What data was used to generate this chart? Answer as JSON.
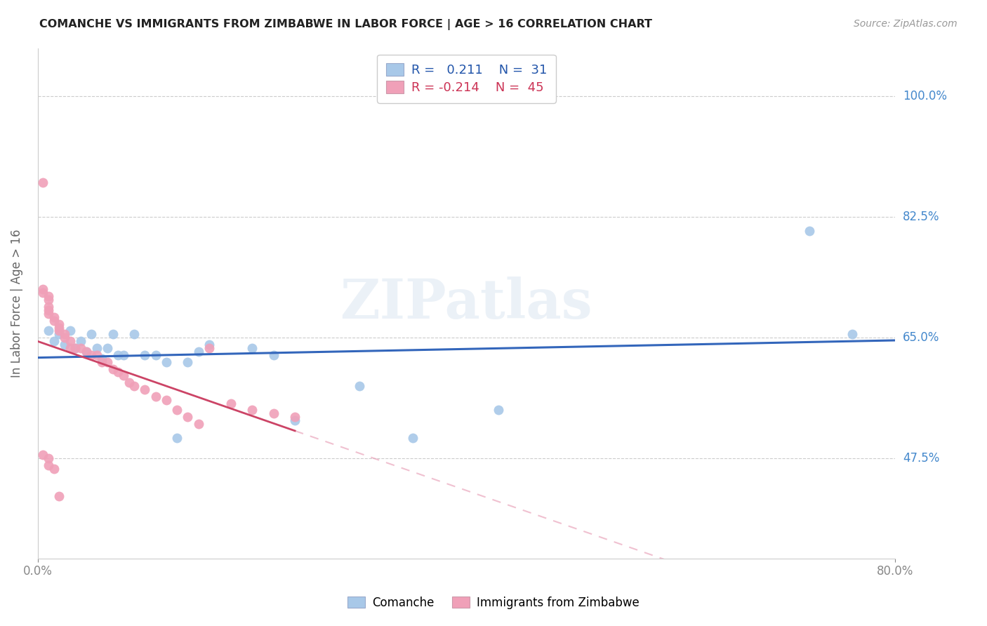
{
  "title": "COMANCHE VS IMMIGRANTS FROM ZIMBABWE IN LABOR FORCE | AGE > 16 CORRELATION CHART",
  "source": "Source: ZipAtlas.com",
  "ylabel_label": "In Labor Force | Age > 16",
  "legend_label1": "Comanche",
  "legend_label2": "Immigrants from Zimbabwe",
  "R1": "0.211",
  "N1": "31",
  "R2": "-0.214",
  "N2": "45",
  "xlim": [
    0.0,
    0.8
  ],
  "ylim": [
    0.33,
    1.07
  ],
  "yticks": [
    0.475,
    0.65,
    0.825,
    1.0
  ],
  "ytick_labels": [
    "47.5%",
    "65.0%",
    "82.5%",
    "100.0%"
  ],
  "xticks": [
    0.0,
    0.8
  ],
  "xtick_labels": [
    "0.0%",
    "80.0%"
  ],
  "blue_color": "#a8c8e8",
  "pink_color": "#f0a0b8",
  "blue_line_color": "#3366bb",
  "pink_line_color": "#cc4466",
  "pink_dash_color": "#e8a0b8",
  "watermark": "ZIPatlas",
  "comanche_x": [
    0.01,
    0.015,
    0.02,
    0.025,
    0.03,
    0.035,
    0.04,
    0.045,
    0.05,
    0.055,
    0.06,
    0.065,
    0.07,
    0.075,
    0.08,
    0.09,
    0.1,
    0.11,
    0.12,
    0.13,
    0.14,
    0.15,
    0.16,
    0.2,
    0.22,
    0.24,
    0.3,
    0.35,
    0.43,
    0.72,
    0.76
  ],
  "comanche_y": [
    0.66,
    0.645,
    0.655,
    0.64,
    0.66,
    0.635,
    0.645,
    0.63,
    0.655,
    0.635,
    0.62,
    0.635,
    0.655,
    0.625,
    0.625,
    0.655,
    0.625,
    0.625,
    0.615,
    0.505,
    0.615,
    0.63,
    0.64,
    0.635,
    0.625,
    0.53,
    0.58,
    0.505,
    0.545,
    0.805,
    0.655
  ],
  "zimb_x": [
    0.005,
    0.005,
    0.005,
    0.01,
    0.01,
    0.01,
    0.01,
    0.01,
    0.015,
    0.015,
    0.02,
    0.02,
    0.02,
    0.025,
    0.025,
    0.03,
    0.03,
    0.035,
    0.04,
    0.045,
    0.05,
    0.055,
    0.06,
    0.065,
    0.07,
    0.075,
    0.08,
    0.085,
    0.09,
    0.1,
    0.11,
    0.12,
    0.13,
    0.14,
    0.15,
    0.16,
    0.18,
    0.2,
    0.22,
    0.24,
    0.005,
    0.01,
    0.01,
    0.015,
    0.02
  ],
  "zimb_y": [
    0.875,
    0.72,
    0.715,
    0.71,
    0.705,
    0.695,
    0.69,
    0.685,
    0.68,
    0.675,
    0.67,
    0.665,
    0.66,
    0.655,
    0.65,
    0.645,
    0.635,
    0.635,
    0.635,
    0.63,
    0.625,
    0.625,
    0.615,
    0.615,
    0.605,
    0.6,
    0.595,
    0.585,
    0.58,
    0.575,
    0.565,
    0.56,
    0.545,
    0.535,
    0.525,
    0.635,
    0.555,
    0.545,
    0.54,
    0.535,
    0.48,
    0.475,
    0.465,
    0.46,
    0.42
  ]
}
